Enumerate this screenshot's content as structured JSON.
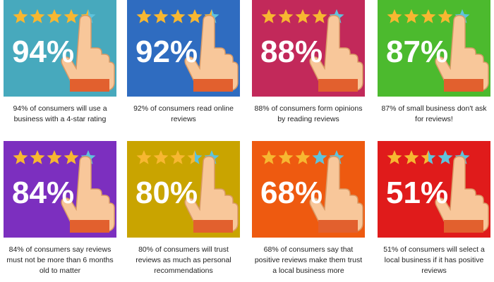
{
  "cards": [
    {
      "percent": "94%",
      "stars": 4.5,
      "color": "#47a9bd",
      "caption": [
        "94% of consumers will use a",
        "business with a 4-star rating"
      ]
    },
    {
      "percent": "92%",
      "stars": 4.5,
      "color": "#2f6cc0",
      "caption": [
        "92% of consumers read online",
        "reviews"
      ]
    },
    {
      "percent": "88%",
      "stars": 4,
      "color": "#c2295a",
      "caption": [
        "88% of consumers form opinions",
        "by reading reviews"
      ]
    },
    {
      "percent": "87%",
      "stars": 4,
      "color": "#4cba2e",
      "caption": [
        "87% of small business don't ask",
        "for reviews!"
      ]
    },
    {
      "percent": "84%",
      "stars": 4,
      "color": "#7c2fbf",
      "caption": [
        "84% of consumers say reviews",
        "must not be more than 6 months",
        "old to matter"
      ]
    },
    {
      "percent": "80%",
      "stars": 3.5,
      "color": "#c9a400",
      "caption": [
        "80% of consumers will trust",
        "reviews as much as personal",
        "recommendations"
      ]
    },
    {
      "percent": "68%",
      "stars": 3,
      "color": "#ee5a10",
      "caption": [
        "68% of consumers say that",
        "positive reviews make them trust",
        "a local business more"
      ]
    },
    {
      "percent": "51%",
      "stars": 2.5,
      "color": "#e01b1b",
      "caption": [
        "51% of consumers will select a",
        "local business if it has positive",
        "reviews"
      ]
    }
  ]
}
